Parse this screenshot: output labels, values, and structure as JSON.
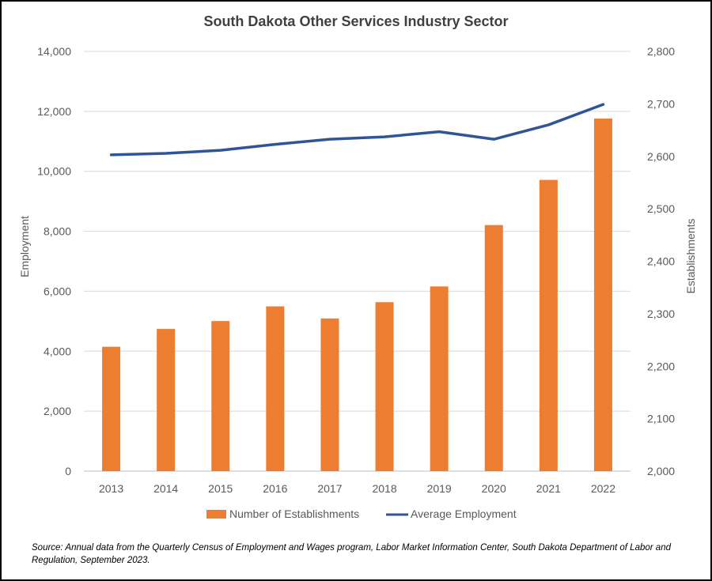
{
  "chart_data": {
    "type": "bar+line",
    "title": "South Dakota Other Services Industry Sector",
    "categories": [
      "2013",
      "2014",
      "2015",
      "2016",
      "2017",
      "2018",
      "2019",
      "2020",
      "2021",
      "2022"
    ],
    "series": [
      {
        "name": "Number of Establishments",
        "type": "bar",
        "axis": "right",
        "color": "#ED7D31",
        "values": [
          2237,
          2271,
          2286,
          2314,
          2291,
          2322,
          2352,
          2469,
          2555,
          2672
        ]
      },
      {
        "name": "Average Employment",
        "type": "line",
        "axis": "left",
        "color": "#2F5597",
        "values": [
          10550,
          10600,
          10700,
          10900,
          11070,
          11150,
          11320,
          11070,
          11550,
          12230
        ]
      }
    ],
    "y_left": {
      "label": "Employment",
      "range": [
        0,
        14000
      ],
      "ticks": [
        "0",
        "2,000",
        "4,000",
        "6,000",
        "8,000",
        "10,000",
        "12,000",
        "14,000"
      ]
    },
    "y_right": {
      "label": "Establishments",
      "range": [
        2000,
        2800
      ],
      "ticks": [
        "2,000",
        "2,100",
        "2,200",
        "2,300",
        "2,400",
        "2,500",
        "2,600",
        "2,700",
        "2,800"
      ]
    },
    "grid": true,
    "legend": [
      "Number of Establishments",
      "Average Employment"
    ],
    "legend_position": "bottom"
  },
  "source": "Source: Annual data from the Quarterly Census of Employment and Wages program, Labor Market Information Center, South Dakota Department of Labor and Regulation, September 2023.",
  "colors": {
    "bar": "#ED7D31",
    "line": "#2F5597",
    "grid": "#D9D9D9",
    "text": "#595959",
    "title": "#404040"
  }
}
